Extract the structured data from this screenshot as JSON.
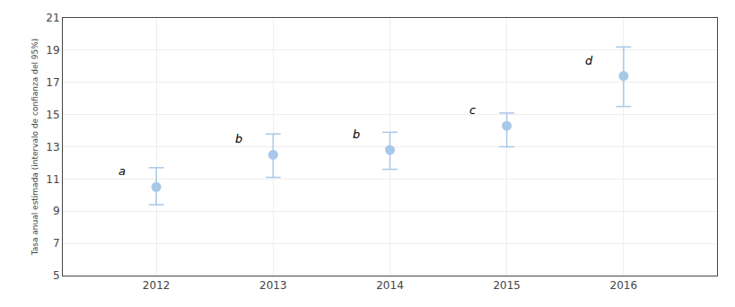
{
  "chart_data": {
    "type": "scatter",
    "x": [
      2012,
      2013,
      2014,
      2015,
      2016
    ],
    "values": [
      10.5,
      12.5,
      12.8,
      14.3,
      17.4
    ],
    "ci_lower": [
      9.4,
      11.1,
      11.6,
      13.0,
      15.5
    ],
    "ci_upper": [
      11.7,
      13.8,
      13.9,
      15.1,
      19.2
    ],
    "annotations": [
      "a",
      "b",
      "b",
      "c",
      "d"
    ],
    "ylabel": "Tasa anual estimada (intervalo de confianza del 95%)",
    "xlim": [
      2011.2,
      2016.8
    ],
    "xticks": [
      2012,
      2013,
      2014,
      2015,
      2016
    ],
    "ylim": [
      5,
      21
    ],
    "yticks": [
      5,
      7,
      9,
      11,
      13,
      15,
      17,
      19,
      21
    ],
    "grid": true,
    "color": "#a8c8e8",
    "marker": "circle"
  }
}
